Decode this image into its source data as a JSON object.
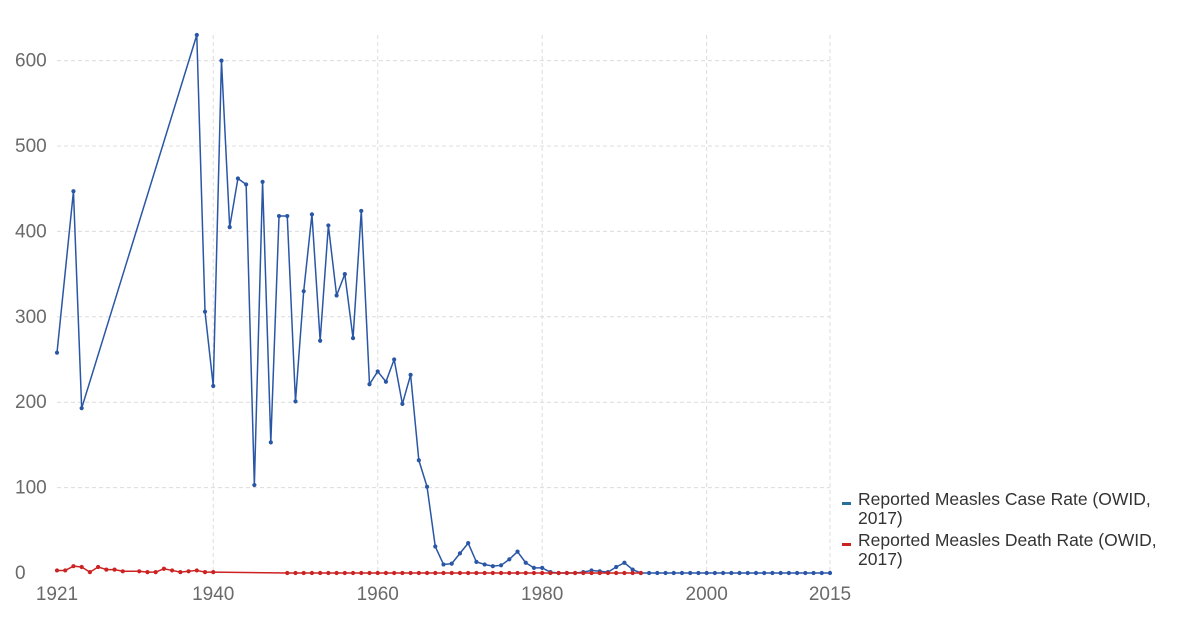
{
  "chart_data": {
    "type": "line",
    "title": "",
    "xlabel": "",
    "ylabel": "",
    "xlim": [
      1921,
      2015
    ],
    "ylim": [
      0,
      630
    ],
    "grid": true,
    "legend_position": "right",
    "x_ticks": [
      1921,
      1940,
      1960,
      1980,
      2000,
      2015
    ],
    "y_ticks": [
      0,
      100,
      200,
      300,
      400,
      500,
      600
    ],
    "series": [
      {
        "name": "Reported Measles Case Rate (OWID, 2017)",
        "color": "#2a56a6",
        "x": [
          1921,
          1923,
          1924,
          1938,
          1939,
          1940,
          1941,
          1942,
          1943,
          1944,
          1945,
          1946,
          1947,
          1948,
          1949,
          1950,
          1951,
          1952,
          1953,
          1954,
          1955,
          1956,
          1957,
          1958,
          1959,
          1960,
          1961,
          1962,
          1963,
          1964,
          1965,
          1966,
          1967,
          1968,
          1969,
          1970,
          1971,
          1972,
          1973,
          1974,
          1975,
          1976,
          1977,
          1978,
          1979,
          1980,
          1981,
          1982,
          1983,
          1984,
          1985,
          1986,
          1987,
          1988,
          1989,
          1990,
          1991,
          1992,
          1993,
          1994,
          1995,
          1996,
          1997,
          1998,
          1999,
          2000,
          2001,
          2002,
          2003,
          2004,
          2005,
          2006,
          2007,
          2008,
          2009,
          2010,
          2011,
          2012,
          2013,
          2014,
          2015
        ],
        "values": [
          258,
          447,
          193,
          630,
          306,
          219,
          600,
          405,
          462,
          455,
          103,
          458,
          153,
          418,
          418,
          201,
          330,
          420,
          272,
          407,
          325,
          350,
          275,
          424,
          221,
          236,
          224,
          250,
          198,
          232,
          132,
          101,
          31,
          10,
          11,
          23,
          35,
          13,
          10,
          8,
          9,
          16,
          25,
          12,
          6,
          6,
          1,
          0,
          0,
          0,
          1,
          3,
          2,
          1,
          7,
          12,
          4,
          0,
          0,
          0,
          0,
          0,
          0,
          0,
          0,
          0,
          0,
          0,
          0,
          0,
          0,
          0,
          0,
          0,
          0,
          0,
          0,
          0,
          0,
          0,
          0
        ]
      },
      {
        "name": "Reported Measles Death Rate (OWID, 2017)",
        "color": "#cc2222",
        "x": [
          1921,
          1922,
          1923,
          1924,
          1925,
          1926,
          1927,
          1928,
          1929,
          1931,
          1932,
          1933,
          1934,
          1935,
          1936,
          1937,
          1938,
          1939,
          1940,
          1949,
          1950,
          1951,
          1952,
          1953,
          1954,
          1955,
          1956,
          1957,
          1958,
          1959,
          1960,
          1961,
          1962,
          1963,
          1964,
          1965,
          1966,
          1967,
          1968,
          1969,
          1970,
          1971,
          1972,
          1973,
          1974,
          1975,
          1976,
          1977,
          1978,
          1979,
          1980,
          1981,
          1982,
          1983,
          1984,
          1985,
          1986,
          1987,
          1988,
          1989,
          1990,
          1991,
          1992
        ],
        "values": [
          3,
          3,
          8,
          7,
          1,
          7,
          4,
          4,
          2,
          2,
          1,
          1,
          5,
          3,
          1,
          2,
          3,
          1,
          1,
          0,
          0,
          0,
          0,
          0,
          0,
          0,
          0,
          0,
          0,
          0,
          0,
          0,
          0,
          0,
          0,
          0,
          0,
          0,
          0,
          0,
          0,
          0,
          0,
          0,
          0,
          0,
          0,
          0,
          0,
          0,
          0,
          0,
          0,
          0,
          0,
          0,
          0,
          0,
          0,
          0,
          0,
          0,
          0
        ]
      }
    ]
  }
}
